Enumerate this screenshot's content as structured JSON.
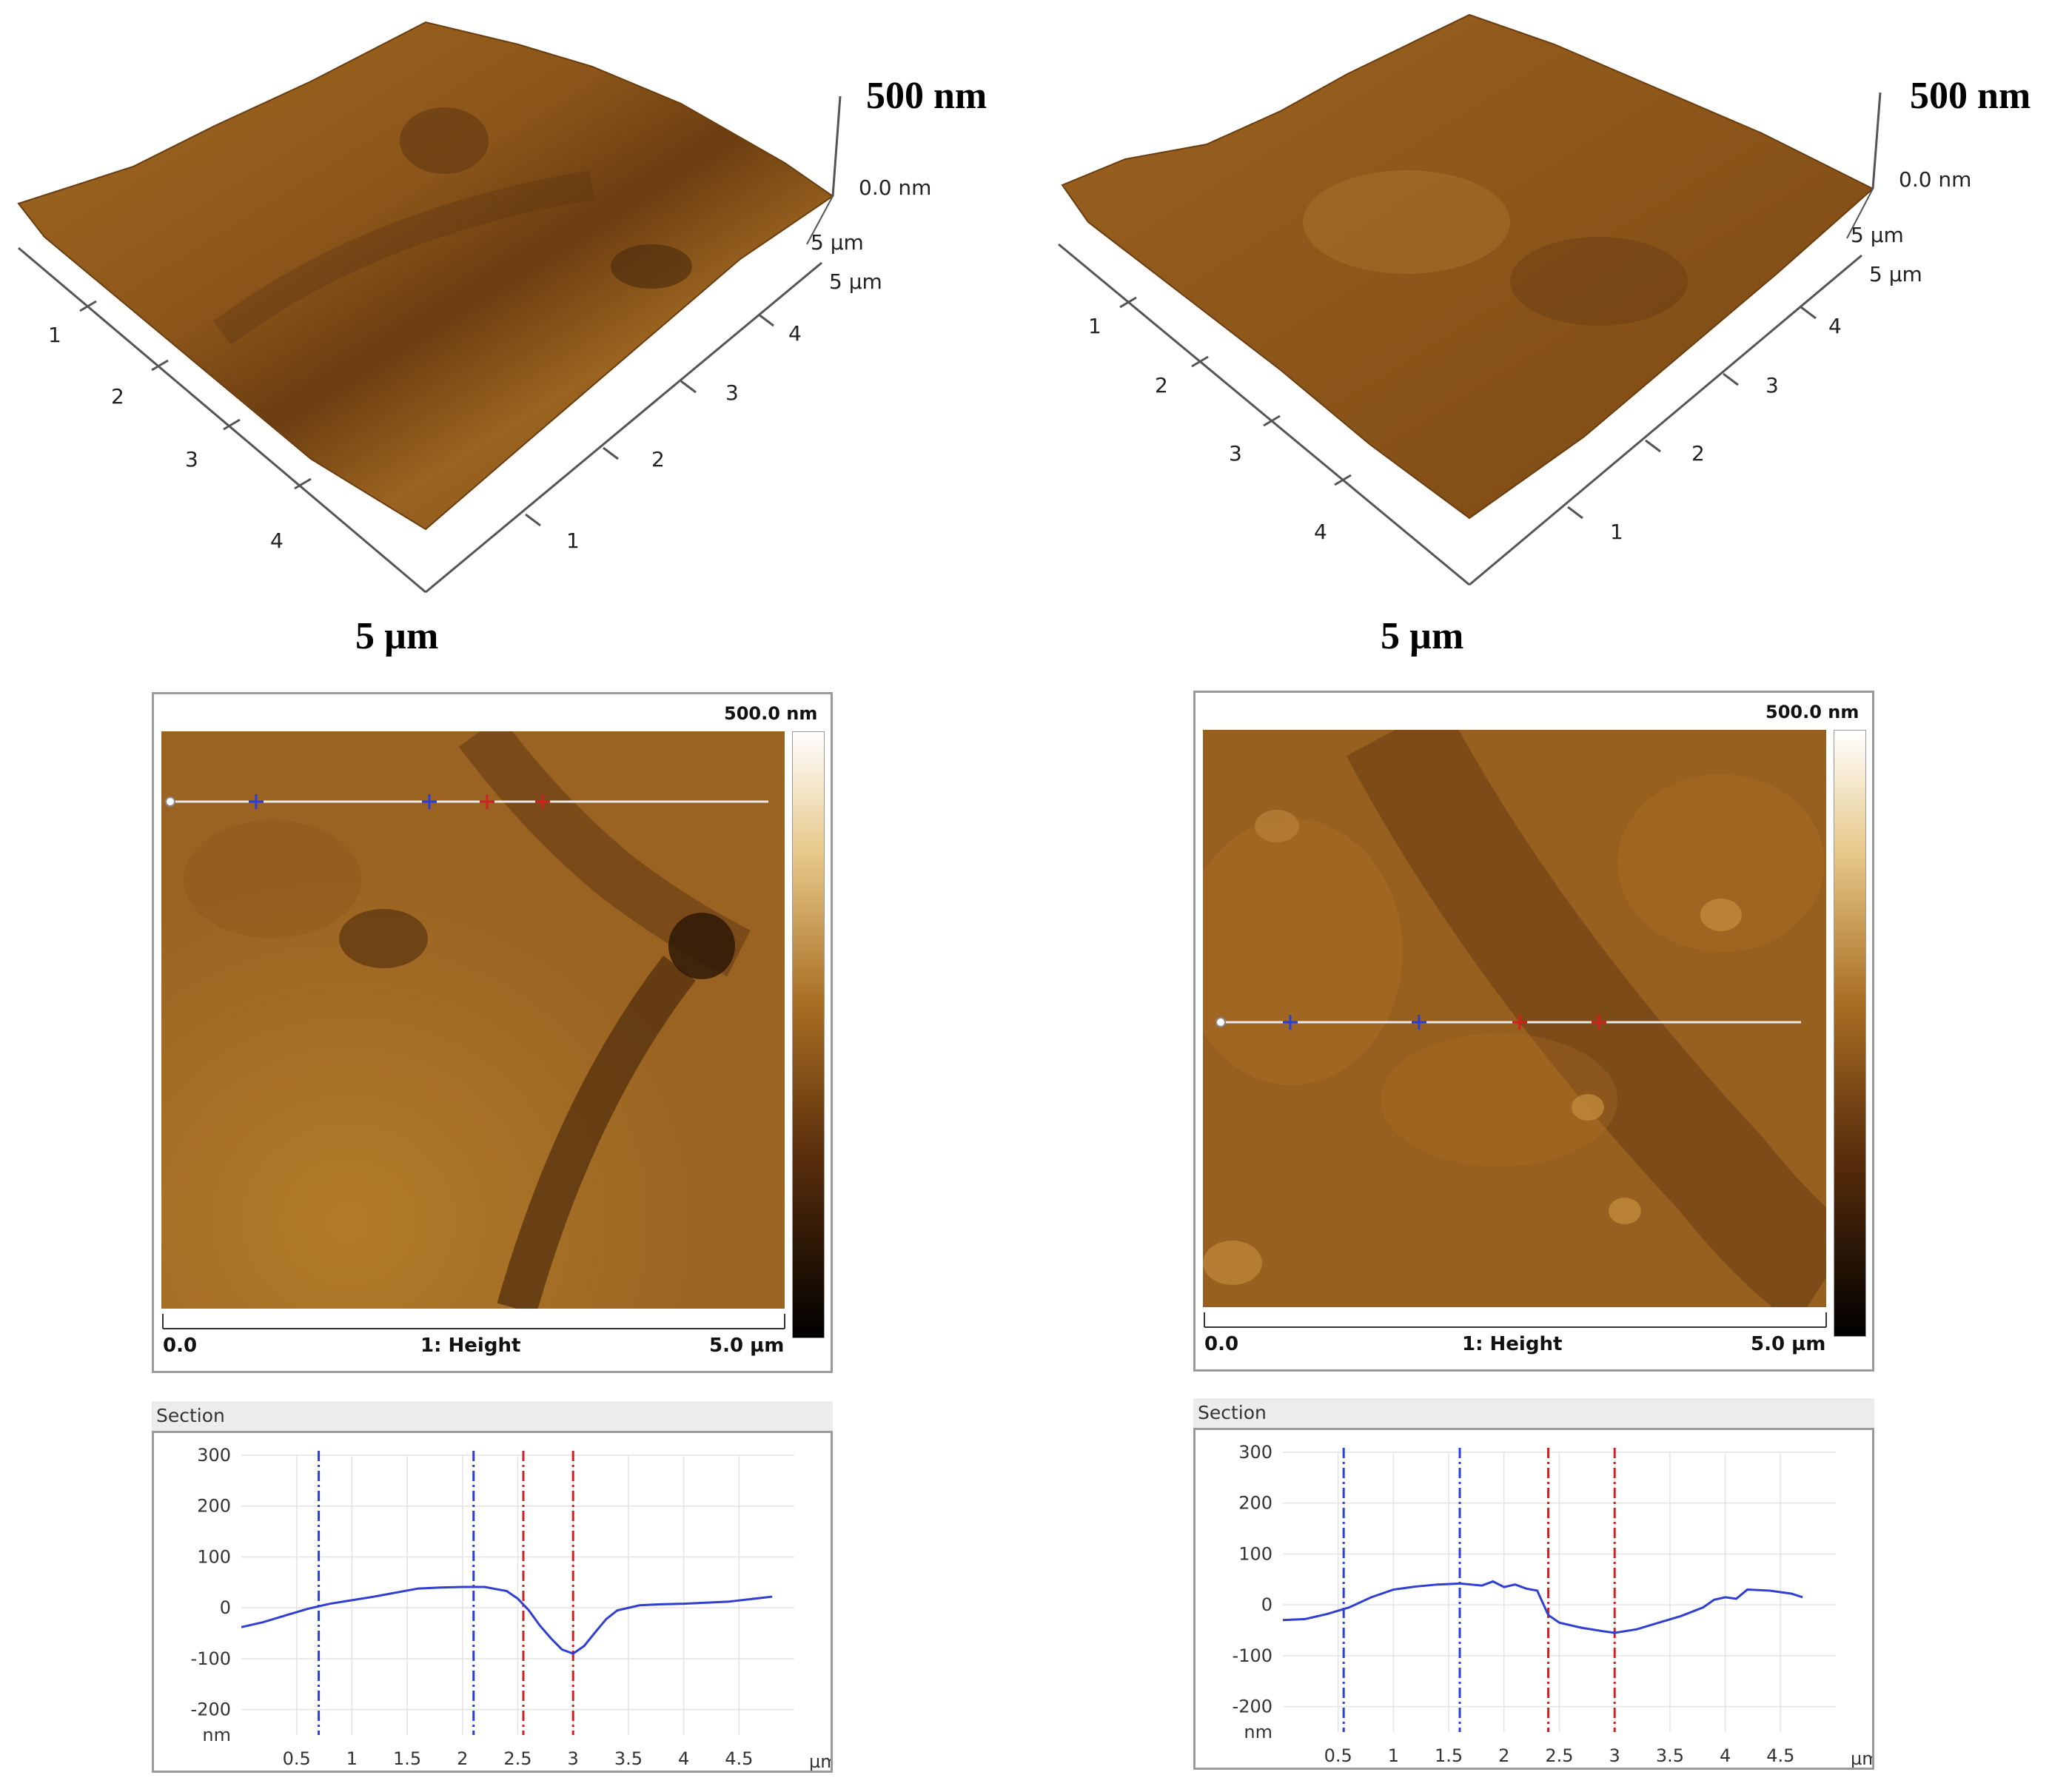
{
  "colors": {
    "surface_light": "#b07a2a",
    "surface_mid": "#96601e",
    "surface_dark": "#5a3410",
    "profile": "#2f3fd0",
    "marker_blue": "#2a3fd8",
    "marker_red": "#d02020",
    "scan_line": "#e8e8e8"
  },
  "panels": [
    {
      "view3d": {
        "z_scale": "500 nm",
        "z_zero": "0.0 nm",
        "y_axis_end": "5 µm",
        "x_axis_end": "5 µm",
        "xy_scale": "5 µm",
        "left_ticks": [
          "1",
          "2",
          "3",
          "4"
        ],
        "right_ticks": [
          "4",
          "3",
          "2",
          "1"
        ]
      },
      "height_image": {
        "colorbar_max": "500.0 nm",
        "x_start": "0.0",
        "channel": "1: Height",
        "x_end": "5.0 µm"
      },
      "section": {
        "title": "Section",
        "y_ticks": [
          "300",
          "200",
          "100",
          "0",
          "-100",
          "-200"
        ],
        "y_unit": "nm",
        "x_ticks": [
          "0.5",
          "1",
          "1.5",
          "2",
          "2.5",
          "3",
          "3.5",
          "4",
          "4.5"
        ],
        "x_unit": "µm",
        "chart_data": {
          "type": "line",
          "xlabel": "µm",
          "ylabel": "nm",
          "xlim": [
            0,
            5.0
          ],
          "ylim": [
            -250,
            300
          ],
          "markers_blue": [
            0.7,
            2.1
          ],
          "markers_red": [
            2.55,
            3.0
          ],
          "x": [
            0,
            0.2,
            0.4,
            0.6,
            0.8,
            1.0,
            1.2,
            1.4,
            1.6,
            1.8,
            2.0,
            2.2,
            2.4,
            2.5,
            2.6,
            2.7,
            2.8,
            2.9,
            3.0,
            3.1,
            3.2,
            3.3,
            3.4,
            3.6,
            3.8,
            4.0,
            4.2,
            4.4,
            4.6,
            4.8
          ],
          "y": [
            -38,
            -28,
            -15,
            -2,
            8,
            15,
            22,
            30,
            38,
            40,
            41,
            41,
            33,
            18,
            -5,
            -35,
            -60,
            -82,
            -90,
            -75,
            -48,
            -22,
            -5,
            5,
            7,
            8,
            10,
            12,
            17,
            22
          ]
        }
      }
    },
    {
      "view3d": {
        "z_scale": "500 nm",
        "z_zero": "0.0 nm",
        "y_axis_end": "5 µm",
        "x_axis_end": "5 µm",
        "xy_scale": "5 µm",
        "left_ticks": [
          "1",
          "2",
          "3",
          "4"
        ],
        "right_ticks": [
          "4",
          "3",
          "2",
          "1"
        ]
      },
      "height_image": {
        "colorbar_max": "500.0 nm",
        "x_start": "0.0",
        "channel": "1: Height",
        "x_end": "5.0 µm"
      },
      "section": {
        "title": "Section",
        "y_ticks": [
          "300",
          "200",
          "100",
          "0",
          "-100",
          "-200"
        ],
        "y_unit": "nm",
        "x_ticks": [
          "0.5",
          "1",
          "1.5",
          "2",
          "2.5",
          "3",
          "3.5",
          "4",
          "4.5"
        ],
        "x_unit": "µm",
        "chart_data": {
          "type": "line",
          "xlabel": "µm",
          "ylabel": "nm",
          "xlim": [
            0,
            5.0
          ],
          "ylim": [
            -250,
            300
          ],
          "markers_blue": [
            0.55,
            1.6
          ],
          "markers_red": [
            2.4,
            3.0
          ],
          "x": [
            0,
            0.2,
            0.4,
            0.6,
            0.8,
            1.0,
            1.2,
            1.4,
            1.6,
            1.8,
            1.9,
            2.0,
            2.1,
            2.2,
            2.3,
            2.4,
            2.5,
            2.7,
            2.9,
            3.0,
            3.2,
            3.4,
            3.6,
            3.8,
            3.9,
            4.0,
            4.1,
            4.2,
            4.4,
            4.6,
            4.7
          ],
          "y": [
            -30,
            -28,
            -18,
            -5,
            15,
            30,
            36,
            40,
            42,
            38,
            46,
            35,
            40,
            32,
            28,
            -20,
            -35,
            -45,
            -52,
            -55,
            -48,
            -35,
            -22,
            -5,
            10,
            15,
            12,
            30,
            28,
            22,
            15
          ]
        }
      }
    }
  ]
}
